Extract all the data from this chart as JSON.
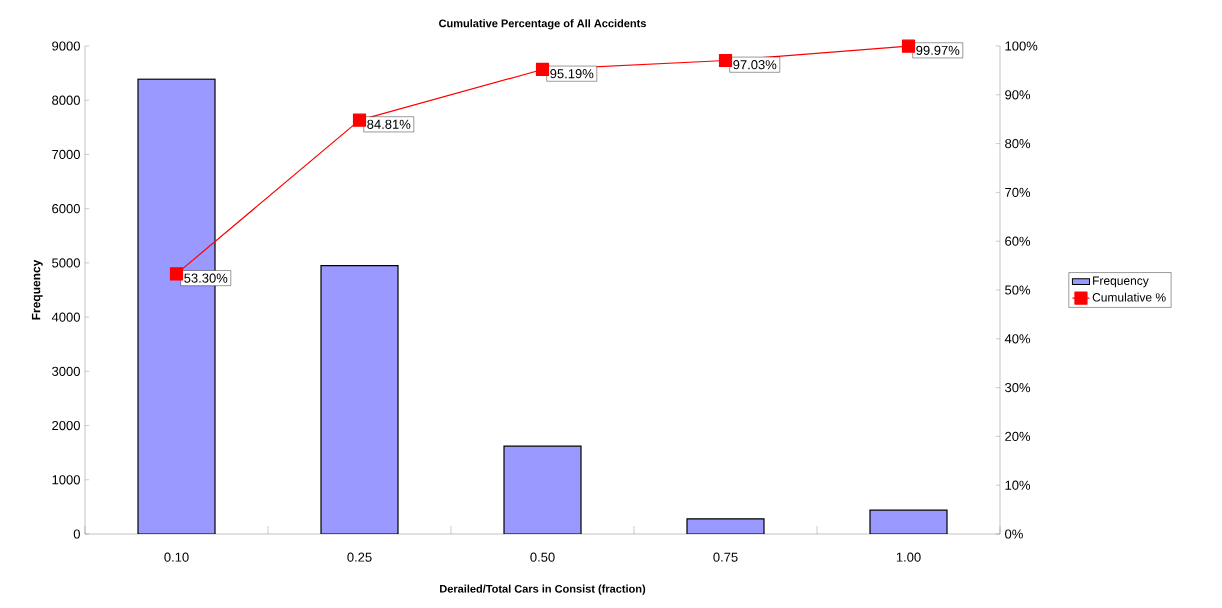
{
  "chart_data": {
    "type": "bar",
    "title": "Cumulative Percentage of All Accidents",
    "xlabel": "Derailed/Total Cars in Consist (fraction)",
    "ylabel": "Frequency",
    "categories": [
      "0.10",
      "0.25",
      "0.50",
      "0.75",
      "1.00"
    ],
    "series": [
      {
        "name": "Frequency",
        "color": "#9999ff",
        "values": [
          8390,
          4950,
          1620,
          280,
          440
        ]
      },
      {
        "name": "Cumulative %",
        "type": "line",
        "axis": "y2",
        "color": "#ff0000",
        "values": [
          53.3,
          84.81,
          95.19,
          97.03,
          99.97
        ],
        "value_labels": [
          "53.30%",
          "84.81%",
          "95.19%",
          "97.03%",
          "99.97%"
        ]
      }
    ],
    "ylim": [
      0,
      9000
    ],
    "yticks": [
      0,
      1000,
      2000,
      3000,
      4000,
      5000,
      6000,
      7000,
      8000,
      9000
    ],
    "y2lim": [
      0,
      100
    ],
    "y2ticks": [
      {
        "value": 0,
        "label": "0%"
      },
      {
        "value": 10,
        "label": "10%"
      },
      {
        "value": 20,
        "label": "20%"
      },
      {
        "value": 30,
        "label": "30%"
      },
      {
        "value": 40,
        "label": "40%"
      },
      {
        "value": 50,
        "label": "50%"
      },
      {
        "value": 60,
        "label": "60%"
      },
      {
        "value": 70,
        "label": "70%"
      },
      {
        "value": 80,
        "label": "80%"
      },
      {
        "value": 90,
        "label": "90%"
      },
      {
        "value": 100,
        "label": "100%"
      }
    ],
    "marker": "square",
    "legend": "right"
  }
}
